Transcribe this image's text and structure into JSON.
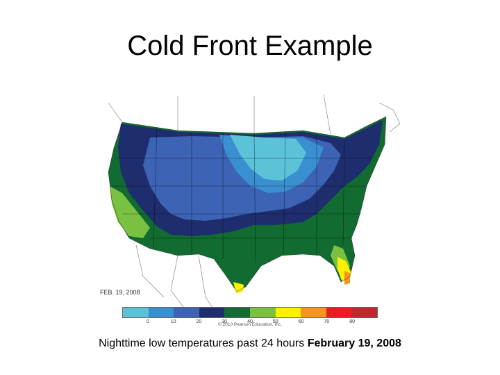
{
  "title": "Cold Front Example",
  "map": {
    "date_label": "FEB. 19, 2008",
    "credit": "© 2010 Pearson Education, Inc."
  },
  "legend": {
    "colors": [
      "#5bc2d8",
      "#3a8fd0",
      "#3c63b4",
      "#1e2d6e",
      "#126b30",
      "#7ac142",
      "#ffef00",
      "#f7941d",
      "#ed1c24",
      "#c1272d"
    ],
    "ticks": [
      "0",
      "10",
      "20",
      "30",
      "40",
      "50",
      "60",
      "70",
      "80"
    ]
  },
  "caption": {
    "text": "Nighttime low temperatures past 24 hours ",
    "date": "February 19, 2008"
  }
}
